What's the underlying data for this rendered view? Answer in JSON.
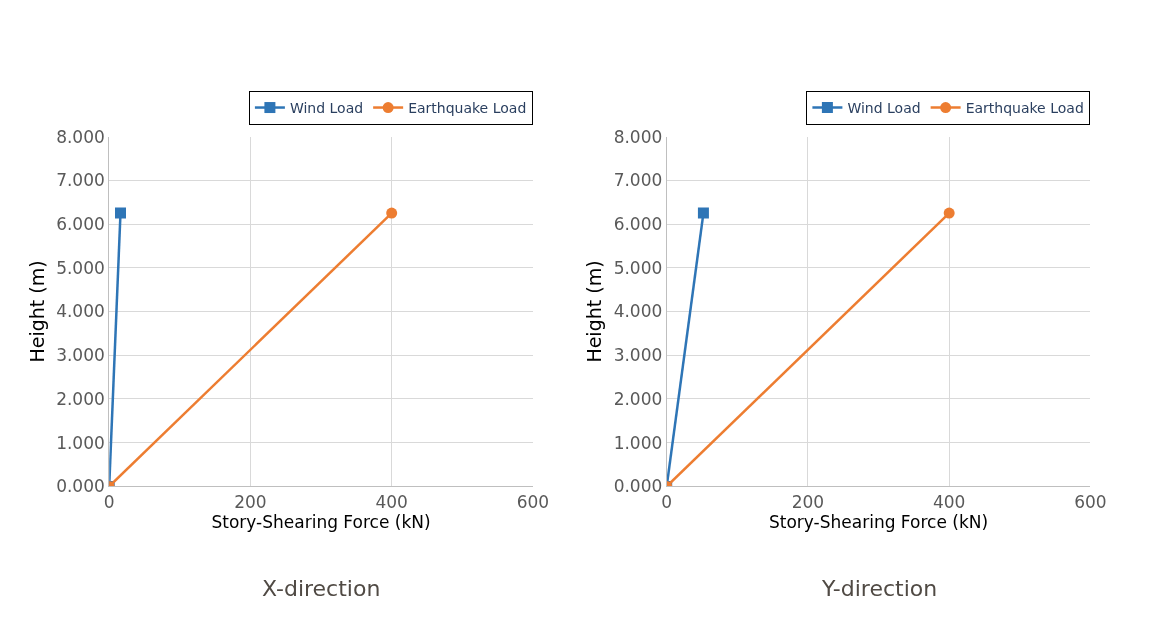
{
  "chart_data": [
    {
      "type": "line",
      "xlabel": "Story-Shearing Force (kN)",
      "ylabel": "Height (m)",
      "annotations": [
        "X-direction"
      ],
      "xlim": [
        0,
        600
      ],
      "xticks": [
        0,
        200,
        400,
        600
      ],
      "ylim": [
        0,
        8
      ],
      "yticks": [
        {
          "value": 0,
          "label": "0.000"
        },
        {
          "value": 1,
          "label": "1.000"
        },
        {
          "value": 2,
          "label": "2.000"
        },
        {
          "value": 3,
          "label": "3.000"
        },
        {
          "value": 4,
          "label": "4.000"
        },
        {
          "value": 5,
          "label": "5.000"
        },
        {
          "value": 6,
          "label": "6.000"
        },
        {
          "value": 7,
          "label": "7.000"
        },
        {
          "value": 8,
          "label": "8.000"
        }
      ],
      "grid": true,
      "legend": "top right",
      "line_style": "solid",
      "series": [
        {
          "name": "Wind Load",
          "color": "#2e75b6",
          "marker": "square",
          "x": [
            0,
            16
          ],
          "values": [
            0,
            6.25
          ]
        },
        {
          "name": "Earthquake Load",
          "color": "#ed7d31",
          "marker": "circle",
          "x": [
            0,
            400
          ],
          "values": [
            0,
            6.25
          ]
        }
      ]
    },
    {
      "type": "line",
      "xlabel": "Story-Shearing Force (kN)",
      "ylabel": "Height (m)",
      "annotations": [
        "Y-direction"
      ],
      "xlim": [
        0,
        600
      ],
      "xticks": [
        0,
        200,
        400,
        600
      ],
      "ylim": [
        0,
        8
      ],
      "yticks": [
        {
          "value": 0,
          "label": "0.000"
        },
        {
          "value": 1,
          "label": "1.000"
        },
        {
          "value": 2,
          "label": "2.000"
        },
        {
          "value": 3,
          "label": "3.000"
        },
        {
          "value": 4,
          "label": "4.000"
        },
        {
          "value": 5,
          "label": "5.000"
        },
        {
          "value": 6,
          "label": "6.000"
        },
        {
          "value": 7,
          "label": "7.000"
        },
        {
          "value": 8,
          "label": "8.000"
        }
      ],
      "grid": true,
      "legend": "top right",
      "line_style": "solid",
      "series": [
        {
          "name": "Wind Load",
          "color": "#2e75b6",
          "marker": "square",
          "x": [
            0,
            52
          ],
          "values": [
            0,
            6.25
          ]
        },
        {
          "name": "Earthquake Load",
          "color": "#ed7d31",
          "marker": "circle",
          "x": [
            0,
            400
          ],
          "values": [
            0,
            6.25
          ]
        }
      ]
    }
  ]
}
